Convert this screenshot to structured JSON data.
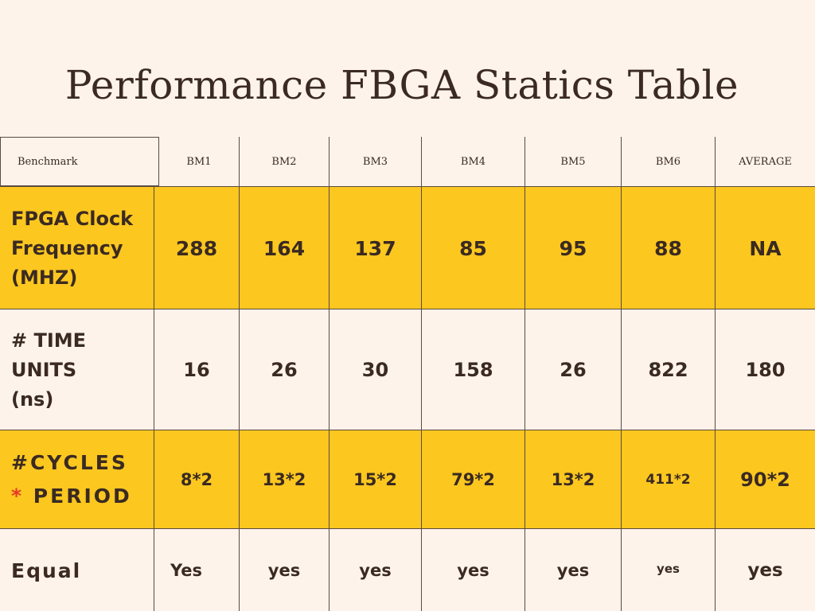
{
  "title": "Performance FBGA Statics Table",
  "table": {
    "headers": [
      "Benchmark",
      "BM1",
      "BM2",
      "BM3",
      "BM4",
      "BM5",
      "BM6",
      "AVERAGE"
    ],
    "rows": [
      {
        "label_lines": [
          "FPGA Clock",
          "Frequency",
          "(MHZ)"
        ],
        "values": [
          "288",
          "164",
          "137",
          "85",
          "95",
          "88",
          "NA"
        ]
      },
      {
        "label_lines": [
          "# TIME UNITS",
          "(ns)"
        ],
        "values": [
          "16",
          "26",
          "30",
          "158",
          "26",
          "822",
          "180"
        ]
      },
      {
        "label_lines": [
          "#CYCLES",
          "*",
          "PERIOD"
        ],
        "values": [
          "8*2",
          "13*2",
          "15*2",
          "79*2",
          "13*2",
          "411*2",
          "90*2"
        ]
      },
      {
        "label_lines": [
          "Equal"
        ],
        "values": [
          "Yes",
          "yes",
          "yes",
          "yes",
          "yes",
          "yes",
          "yes"
        ]
      }
    ]
  },
  "colors": {
    "background": "#fdf3ea",
    "highlight_row": "#fcc71f",
    "text": "#3a2a22",
    "asterisk": "#e8372a"
  }
}
